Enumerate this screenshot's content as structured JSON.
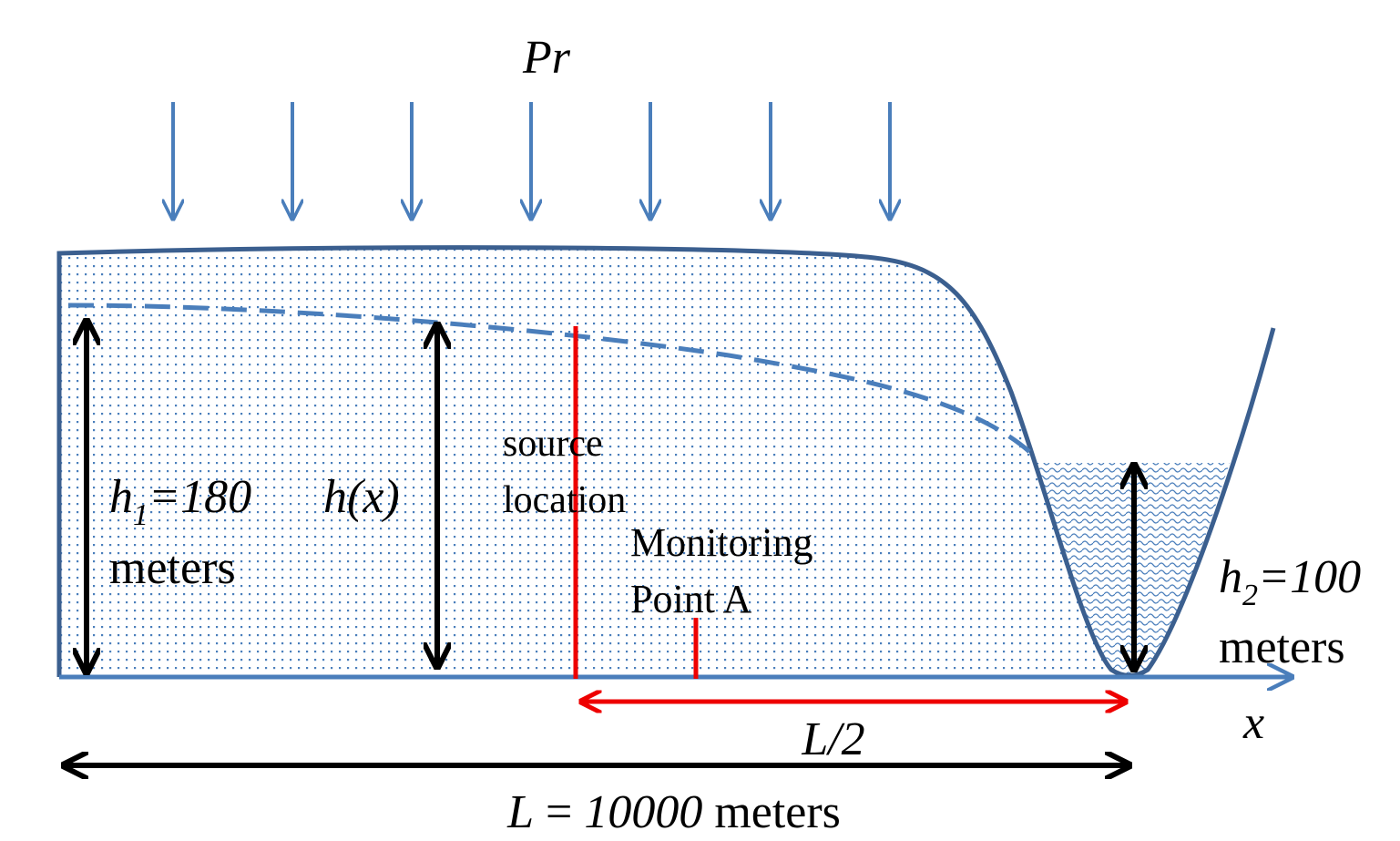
{
  "labels": {
    "precipitation": "Pr",
    "source": [
      "source",
      "location"
    ],
    "monitoring": [
      "Monitoring",
      "Point A"
    ],
    "h1": {
      "symbol": "h",
      "subscript": "1",
      "value": "=180",
      "unit": "meters"
    },
    "hx": "h(x)",
    "h2": {
      "symbol": "h",
      "subscript": "2",
      "value": "=100",
      "unit": "meters"
    },
    "x_axis": "x",
    "half_length": "L/2",
    "length": {
      "symbol": "L",
      "equals": " = ",
      "value": "10000",
      "unit": " meters"
    }
  }
}
